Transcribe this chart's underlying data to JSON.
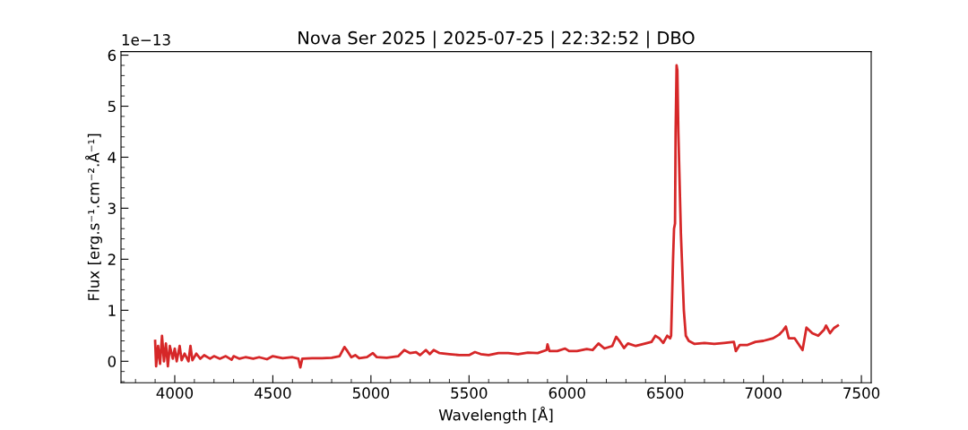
{
  "chart_data": {
    "type": "line",
    "title": "Nova Ser 2025 | 2025-07-25 | 22:32:52 | DBO",
    "xlabel": "Wavelength [Å]",
    "ylabel": "Flux [erg.s⁻¹.cm⁻².Å⁻¹]",
    "annotations": [
      "1e−13"
    ],
    "xlim": [
      3726,
      7550
    ],
    "ylim": [
      -0.42,
      6.07
    ],
    "xticks": [
      4000,
      4500,
      5000,
      5500,
      6000,
      6500,
      7000,
      7500
    ],
    "yticks": [
      0,
      1,
      2,
      3,
      4,
      5,
      6
    ],
    "grid": false,
    "legend": false,
    "marker": "none",
    "line_style": "solid",
    "series": [
      {
        "color": "#d62728",
        "x": [
          3900,
          3905,
          3915,
          3925,
          3935,
          3945,
          3955,
          3965,
          3975,
          3990,
          4000,
          4010,
          4025,
          4035,
          4050,
          4070,
          4080,
          4090,
          4110,
          4130,
          4150,
          4180,
          4200,
          4230,
          4260,
          4290,
          4300,
          4330,
          4360,
          4400,
          4430,
          4470,
          4500,
          4550,
          4600,
          4630,
          4640,
          4650,
          4700,
          4750,
          4800,
          4840,
          4865,
          4880,
          4900,
          4920,
          4940,
          4980,
          5010,
          5030,
          5080,
          5140,
          5170,
          5200,
          5230,
          5250,
          5280,
          5300,
          5320,
          5350,
          5400,
          5450,
          5500,
          5530,
          5560,
          5600,
          5650,
          5700,
          5750,
          5800,
          5850,
          5895,
          5900,
          5910,
          5950,
          5990,
          6010,
          6050,
          6100,
          6130,
          6160,
          6190,
          6230,
          6250,
          6270,
          6290,
          6310,
          6350,
          6400,
          6430,
          6450,
          6470,
          6490,
          6510,
          6525,
          6530,
          6540,
          6545,
          6550,
          6553,
          6558,
          6562,
          6567,
          6580,
          6595,
          6605,
          6620,
          6650,
          6700,
          6750,
          6800,
          6850,
          6860,
          6880,
          6920,
          6960,
          7000,
          7050,
          7080,
          7100,
          7115,
          7130,
          7160,
          7200,
          7220,
          7250,
          7280,
          7310,
          7320,
          7340,
          7360,
          7380
        ],
        "values": [
          0.4,
          -0.1,
          0.3,
          -0.05,
          0.5,
          0.0,
          0.35,
          -0.1,
          0.3,
          0.05,
          0.25,
          0.0,
          0.3,
          0.02,
          0.15,
          0.0,
          0.3,
          0.02,
          0.15,
          0.05,
          0.12,
          0.05,
          0.1,
          0.05,
          0.1,
          0.03,
          0.1,
          0.05,
          0.08,
          0.05,
          0.08,
          0.04,
          0.1,
          0.06,
          0.08,
          0.05,
          -0.12,
          0.05,
          0.06,
          0.06,
          0.07,
          0.1,
          0.28,
          0.2,
          0.08,
          0.12,
          0.06,
          0.08,
          0.16,
          0.08,
          0.07,
          0.1,
          0.22,
          0.16,
          0.18,
          0.12,
          0.22,
          0.14,
          0.22,
          0.16,
          0.14,
          0.12,
          0.12,
          0.18,
          0.14,
          0.12,
          0.16,
          0.16,
          0.14,
          0.17,
          0.16,
          0.22,
          0.33,
          0.2,
          0.2,
          0.25,
          0.2,
          0.2,
          0.24,
          0.22,
          0.35,
          0.25,
          0.3,
          0.48,
          0.38,
          0.26,
          0.35,
          0.3,
          0.35,
          0.38,
          0.5,
          0.45,
          0.36,
          0.5,
          0.45,
          0.5,
          2.0,
          2.6,
          2.7,
          4.5,
          5.8,
          5.7,
          4.5,
          2.5,
          1.0,
          0.5,
          0.4,
          0.34,
          0.36,
          0.34,
          0.36,
          0.38,
          0.2,
          0.32,
          0.32,
          0.38,
          0.4,
          0.45,
          0.52,
          0.6,
          0.68,
          0.45,
          0.45,
          0.22,
          0.66,
          0.55,
          0.5,
          0.62,
          0.7,
          0.55,
          0.65,
          0.7
        ]
      }
    ]
  }
}
